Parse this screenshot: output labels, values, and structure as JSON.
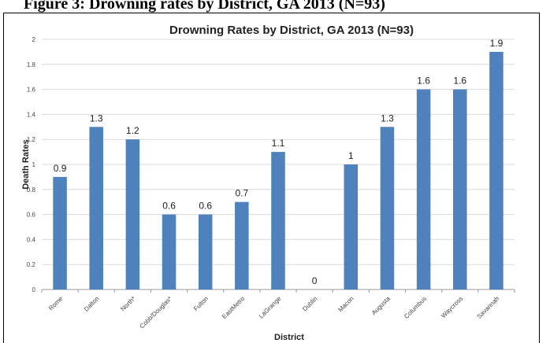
{
  "caption": "Figure 3: Drowning rates by District, GA 2013 (N=93)",
  "chart_data": {
    "type": "bar",
    "title": "Drowning Rates by District, GA 2013 (N=93)",
    "xlabel": "District",
    "ylabel": "Death Rates",
    "ylim": [
      0,
      2
    ],
    "yticks": [
      "0",
      "0.2",
      "0.4",
      "0.6",
      "0.8",
      "1",
      "1.2",
      "1.4",
      "1.6",
      "1.8",
      "2"
    ],
    "grid": true,
    "bar_color": "#4f81bd",
    "categories": [
      "Rome",
      "Dalton",
      "North*",
      "Cobb/Douglas*",
      "Fulton",
      "EastMetro",
      "LaGrange",
      "Dublin",
      "Macon",
      "Augusta",
      "Columbus",
      "Waycross",
      "Savannah"
    ],
    "values": [
      0.9,
      1.3,
      1.2,
      0.6,
      0.6,
      0.7,
      1.1,
      0,
      1,
      1.3,
      1.6,
      1.6,
      1.9
    ],
    "data_labels": [
      "0.9",
      "1.3",
      "1.2",
      "0.6",
      "0.6",
      "0.7",
      "1.1",
      "0",
      "1",
      "1.3",
      "1.6",
      "1.6",
      "1.9"
    ]
  }
}
